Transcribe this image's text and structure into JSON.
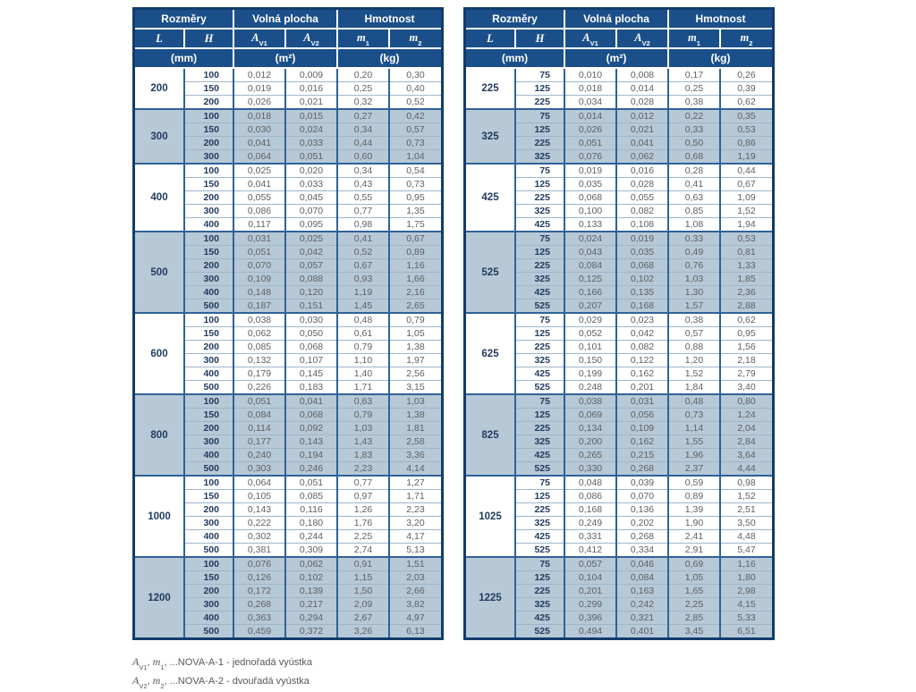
{
  "colors": {
    "frame-blue": "#123c6b",
    "header-blue": "#1b4f8a",
    "band-blue": "#b7c8d6",
    "border-blue": "#2e6398",
    "row-line": "#9fb6ca",
    "navy-text": "#1f3a5f",
    "value-text": "#5c6165",
    "foot-text": "#55595c"
  },
  "header": {
    "groups": [
      "Rozměry",
      "Volná plocha",
      "Hmotnost"
    ],
    "cols": [
      {
        "base": "L",
        "sub": ""
      },
      {
        "base": "H",
        "sub": ""
      },
      {
        "base": "A",
        "sub": "V1"
      },
      {
        "base": "A",
        "sub": "V2"
      },
      {
        "base": "m",
        "sub": "1"
      },
      {
        "base": "m",
        "sub": "2"
      }
    ],
    "units": [
      "(mm)",
      "(m²)",
      "(kg)"
    ]
  },
  "tables": {
    "left": {
      "groups": [
        {
          "l": "200",
          "rows": [
            [
              "100",
              "0,012",
              "0,009",
              "0,20",
              "0,30"
            ],
            [
              "150",
              "0,019",
              "0,016",
              "0,25",
              "0,40"
            ],
            [
              "200",
              "0,026",
              "0,021",
              "0,32",
              "0,52"
            ]
          ]
        },
        {
          "l": "300",
          "rows": [
            [
              "100",
              "0,018",
              "0,015",
              "0,27",
              "0,42"
            ],
            [
              "150",
              "0,030",
              "0,024",
              "0,34",
              "0,57"
            ],
            [
              "200",
              "0,041",
              "0,033",
              "0,44",
              "0,73"
            ],
            [
              "300",
              "0,064",
              "0,051",
              "0,60",
              "1,04"
            ]
          ]
        },
        {
          "l": "400",
          "rows": [
            [
              "100",
              "0,025",
              "0,020",
              "0,34",
              "0,54"
            ],
            [
              "150",
              "0,041",
              "0,033",
              "0,43",
              "0,73"
            ],
            [
              "200",
              "0,055",
              "0,045",
              "0,55",
              "0,95"
            ],
            [
              "300",
              "0,086",
              "0,070",
              "0,77",
              "1,35"
            ],
            [
              "400",
              "0,117",
              "0,095",
              "0,98",
              "1,75"
            ]
          ]
        },
        {
          "l": "500",
          "rows": [
            [
              "100",
              "0,031",
              "0,025",
              "0,41",
              "0,67"
            ],
            [
              "150",
              "0,051",
              "0,042",
              "0,52",
              "0,89"
            ],
            [
              "200",
              "0,070",
              "0,057",
              "0,67",
              "1,16"
            ],
            [
              "300",
              "0,109",
              "0,088",
              "0,93",
              "1,66"
            ],
            [
              "400",
              "0,148",
              "0,120",
              "1,19",
              "2,16"
            ],
            [
              "500",
              "0,187",
              "0,151",
              "1,45",
              "2,65"
            ]
          ]
        },
        {
          "l": "600",
          "rows": [
            [
              "100",
              "0,038",
              "0,030",
              "0,48",
              "0,79"
            ],
            [
              "150",
              "0,062",
              "0,050",
              "0,61",
              "1,05"
            ],
            [
              "200",
              "0,085",
              "0,068",
              "0,79",
              "1,38"
            ],
            [
              "300",
              "0,132",
              "0,107",
              "1,10",
              "1,97"
            ],
            [
              "400",
              "0,179",
              "0,145",
              "1,40",
              "2,56"
            ],
            [
              "500",
              "0,226",
              "0,183",
              "1,71",
              "3,15"
            ]
          ]
        },
        {
          "l": "800",
          "rows": [
            [
              "100",
              "0,051",
              "0,041",
              "0,63",
              "1,03"
            ],
            [
              "150",
              "0,084",
              "0,068",
              "0,79",
              "1,38"
            ],
            [
              "200",
              "0,114",
              "0,092",
              "1,03",
              "1,81"
            ],
            [
              "300",
              "0,177",
              "0,143",
              "1,43",
              "2,58"
            ],
            [
              "400",
              "0,240",
              "0,194",
              "1,83",
              "3,36"
            ],
            [
              "500",
              "0,303",
              "0,246",
              "2,23",
              "4,14"
            ]
          ]
        },
        {
          "l": "1000",
          "rows": [
            [
              "100",
              "0,064",
              "0,051",
              "0,77",
              "1,27"
            ],
            [
              "150",
              "0,105",
              "0,085",
              "0,97",
              "1,71"
            ],
            [
              "200",
              "0,143",
              "0,116",
              "1,26",
              "2,23"
            ],
            [
              "300",
              "0,222",
              "0,180",
              "1,76",
              "3,20"
            ],
            [
              "400",
              "0,302",
              "0,244",
              "2,25",
              "4,17"
            ],
            [
              "500",
              "0,381",
              "0,309",
              "2,74",
              "5,13"
            ]
          ]
        },
        {
          "l": "1200",
          "rows": [
            [
              "100",
              "0,076",
              "0,062",
              "0,91",
              "1,51"
            ],
            [
              "150",
              "0,126",
              "0,102",
              "1,15",
              "2,03"
            ],
            [
              "200",
              "0,172",
              "0,139",
              "1,50",
              "2,66"
            ],
            [
              "300",
              "0,268",
              "0,217",
              "2,09",
              "3,82"
            ],
            [
              "400",
              "0,363",
              "0,294",
              "2,67",
              "4,97"
            ],
            [
              "500",
              "0,459",
              "0,372",
              "3,26",
              "6,13"
            ]
          ]
        }
      ]
    },
    "right": {
      "groups": [
        {
          "l": "225",
          "rows": [
            [
              "75",
              "0,010",
              "0,008",
              "0,17",
              "0,26"
            ],
            [
              "125",
              "0,018",
              "0,014",
              "0,25",
              "0,39"
            ],
            [
              "225",
              "0,034",
              "0,028",
              "0,38",
              "0,62"
            ]
          ]
        },
        {
          "l": "325",
          "rows": [
            [
              "75",
              "0,014",
              "0,012",
              "0,22",
              "0,35"
            ],
            [
              "125",
              "0,026",
              "0,021",
              "0,33",
              "0,53"
            ],
            [
              "225",
              "0,051",
              "0,041",
              "0,50",
              "0,86"
            ],
            [
              "325",
              "0,076",
              "0,062",
              "0,68",
              "1,19"
            ]
          ]
        },
        {
          "l": "425",
          "rows": [
            [
              "75",
              "0,019",
              "0,016",
              "0,28",
              "0,44"
            ],
            [
              "125",
              "0,035",
              "0,028",
              "0,41",
              "0,67"
            ],
            [
              "225",
              "0,068",
              "0,055",
              "0,63",
              "1,09"
            ],
            [
              "325",
              "0,100",
              "0,082",
              "0,85",
              "1,52"
            ],
            [
              "425",
              "0,133",
              "0,108",
              "1,08",
              "1,94"
            ]
          ]
        },
        {
          "l": "525",
          "rows": [
            [
              "75",
              "0,024",
              "0,019",
              "0,33",
              "0,53"
            ],
            [
              "125",
              "0,043",
              "0,035",
              "0,49",
              "0,81"
            ],
            [
              "225",
              "0,084",
              "0,068",
              "0,76",
              "1,33"
            ],
            [
              "325",
              "0,125",
              "0,102",
              "1,03",
              "1,85"
            ],
            [
              "425",
              "0,166",
              "0,135",
              "1,30",
              "2,36"
            ],
            [
              "525",
              "0,207",
              "0,168",
              "1,57",
              "2,88"
            ]
          ]
        },
        {
          "l": "625",
          "rows": [
            [
              "75",
              "0,029",
              "0,023",
              "0,38",
              "0,62"
            ],
            [
              "125",
              "0,052",
              "0,042",
              "0,57",
              "0,95"
            ],
            [
              "225",
              "0,101",
              "0,082",
              "0,88",
              "1,56"
            ],
            [
              "325",
              "0,150",
              "0,122",
              "1,20",
              "2,18"
            ],
            [
              "425",
              "0,199",
              "0,162",
              "1,52",
              "2,79"
            ],
            [
              "525",
              "0,248",
              "0,201",
              "1,84",
              "3,40"
            ]
          ]
        },
        {
          "l": "825",
          "rows": [
            [
              "75",
              "0,038",
              "0,031",
              "0,48",
              "0,80"
            ],
            [
              "125",
              "0,069",
              "0,056",
              "0,73",
              "1,24"
            ],
            [
              "225",
              "0,134",
              "0,109",
              "1,14",
              "2,04"
            ],
            [
              "325",
              "0,200",
              "0,162",
              "1,55",
              "2,84"
            ],
            [
              "425",
              "0,265",
              "0,215",
              "1,96",
              "3,64"
            ],
            [
              "525",
              "0,330",
              "0,268",
              "2,37",
              "4,44"
            ]
          ]
        },
        {
          "l": "1025",
          "rows": [
            [
              "75",
              "0,048",
              "0,039",
              "0,59",
              "0,98"
            ],
            [
              "125",
              "0,086",
              "0,070",
              "0,89",
              "1,52"
            ],
            [
              "225",
              "0,168",
              "0,136",
              "1,39",
              "2,51"
            ],
            [
              "325",
              "0,249",
              "0,202",
              "1,90",
              "3,50"
            ],
            [
              "425",
              "0,331",
              "0,268",
              "2,41",
              "4,48"
            ],
            [
              "525",
              "0,412",
              "0,334",
              "2,91",
              "5,47"
            ]
          ]
        },
        {
          "l": "1225",
          "rows": [
            [
              "75",
              "0,057",
              "0,046",
              "0,69",
              "1,16"
            ],
            [
              "125",
              "0,104",
              "0,084",
              "1,05",
              "1,80"
            ],
            [
              "225",
              "0,201",
              "0,163",
              "1,65",
              "2,98"
            ],
            [
              "325",
              "0,299",
              "0,242",
              "2,25",
              "4,15"
            ],
            [
              "425",
              "0,396",
              "0,321",
              "2,85",
              "5,33"
            ],
            [
              "525",
              "0,494",
              "0,401",
              "3,45",
              "6,51"
            ]
          ]
        }
      ]
    }
  },
  "footnotes": [
    {
      "a_base": "A",
      "a_sub": "V1",
      "m_base": "m",
      "m_sub": "1",
      "sep": ", ",
      "rest": "...NOVA-A-1 - jednořadá vyústka"
    },
    {
      "a_base": "A",
      "a_sub": "V2",
      "m_base": "m",
      "m_sub": "2",
      "sep": ", ",
      "rest": "...NOVA-A-2 - dvouřadá vyústka"
    }
  ]
}
